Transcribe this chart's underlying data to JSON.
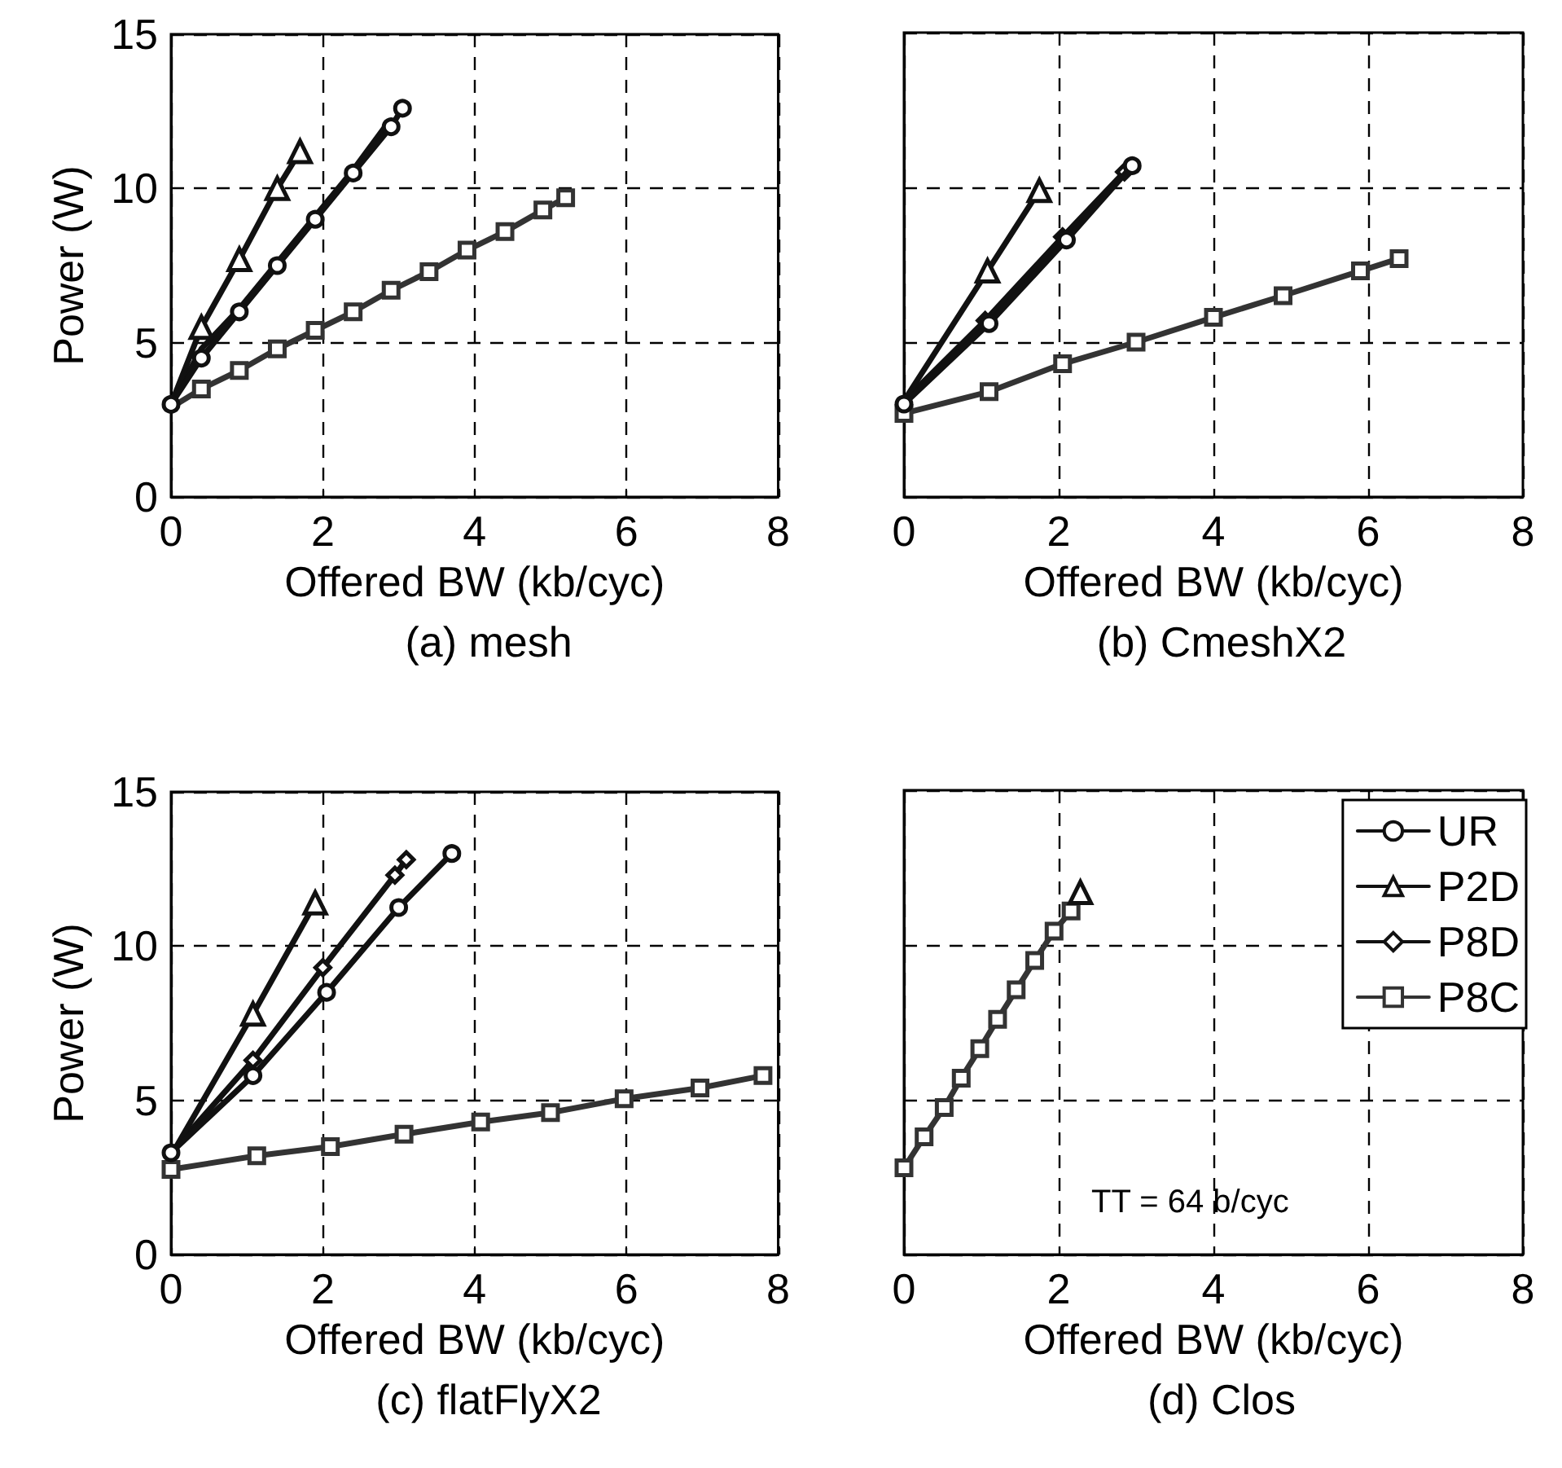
{
  "chart_data": [
    {
      "type": "line",
      "title": "(a) mesh",
      "xlabel": "Offered BW (kb/cyc)",
      "ylabel": "Power (W)",
      "xlim": [
        0,
        8
      ],
      "ylim": [
        0,
        15
      ],
      "xticks": [
        0,
        2,
        4,
        6,
        8
      ],
      "yticks": [
        0,
        5,
        10,
        15
      ],
      "grid": true,
      "legend": false,
      "line_style": "solid",
      "series": [
        {
          "color": "#111111",
          "marker": "circle",
          "x": [
            0,
            0.4,
            0.9,
            1.4,
            1.9,
            2.4,
            2.9,
            3.05
          ],
          "values": [
            3,
            4.5,
            6,
            7.5,
            9,
            10.5,
            12,
            12.6
          ]
        },
        {
          "color": "#111111",
          "marker": "triangle",
          "x": [
            0,
            0.4,
            0.9,
            1.4,
            1.7
          ],
          "values": [
            3,
            5.5,
            7.7,
            10,
            11.2
          ]
        },
        {
          "color": "#111111",
          "marker": "none",
          "x": [
            0,
            0.4,
            0.9,
            1.4,
            1.9,
            2.4,
            2.85
          ],
          "values": [
            3,
            4.8,
            6.1,
            7.6,
            9.1,
            10.6,
            12.1
          ]
        },
        {
          "color": "#333333",
          "marker": "square",
          "x": [
            0,
            0.4,
            0.9,
            1.4,
            1.9,
            2.4,
            2.9,
            3.4,
            3.9,
            4.4,
            4.9,
            5.2
          ],
          "values": [
            2.9,
            3.5,
            4.1,
            4.8,
            5.4,
            6,
            6.7,
            7.3,
            8,
            8.6,
            9.3,
            9.7
          ]
        }
      ]
    },
    {
      "type": "line",
      "title": "(b) CmeshX2",
      "xlabel": "Offered BW (kb/cyc)",
      "xlim": [
        0,
        8
      ],
      "ylim": [
        0,
        15
      ],
      "xticks": [
        0,
        2,
        4,
        6,
        8
      ],
      "yticks": [
        0,
        5,
        10,
        15
      ],
      "tick_labels": "x",
      "grid": true,
      "legend": false,
      "line_style": "solid",
      "series": [
        {
          "color": "#111111",
          "marker": "circle",
          "x": [
            0,
            1.1,
            2.1,
            2.95
          ],
          "values": [
            3,
            5.6,
            8.3,
            10.7
          ]
        },
        {
          "color": "#111111",
          "marker": "triangle",
          "x": [
            0,
            1.08,
            1.75
          ],
          "values": [
            3.1,
            7.3,
            9.9
          ]
        },
        {
          "color": "#111111",
          "marker": "diamond",
          "x": [
            0,
            1.05,
            2.05,
            2.85
          ],
          "values": [
            3.1,
            5.7,
            8.4,
            10.5
          ]
        },
        {
          "color": "#333333",
          "marker": "square",
          "x": [
            0,
            1.1,
            2.05,
            3,
            4,
            4.9,
            5.9,
            6.4
          ],
          "values": [
            2.7,
            3.4,
            4.3,
            5,
            5.8,
            6.5,
            7.3,
            7.7
          ]
        }
      ]
    },
    {
      "type": "line",
      "title": "(c) flatFlyX2",
      "xlabel": "Offered BW (kb/cyc)",
      "ylabel": "Power (W)",
      "xlim": [
        0,
        8
      ],
      "ylim": [
        0,
        15
      ],
      "xticks": [
        0,
        2,
        4,
        6,
        8
      ],
      "yticks": [
        0,
        5,
        10,
        15
      ],
      "grid": true,
      "legend": false,
      "line_style": "solid",
      "series": [
        {
          "color": "#111111",
          "marker": "circle",
          "x": [
            0,
            1.08,
            2.05,
            3,
            3.7
          ],
          "values": [
            3.3,
            5.8,
            8.5,
            11.25,
            13
          ]
        },
        {
          "color": "#111111",
          "marker": "triangle",
          "x": [
            0,
            1.08,
            1.9
          ],
          "values": [
            3.2,
            7.8,
            11.4
          ]
        },
        {
          "color": "#111111",
          "marker": "diamond",
          "x": [
            0,
            1.08,
            2,
            2.95,
            3.1
          ],
          "values": [
            3.3,
            6.3,
            9.3,
            12.3,
            12.8
          ]
        },
        {
          "color": "#333333",
          "marker": "square",
          "x": [
            0,
            1.13,
            2.1,
            3.07,
            4.08,
            5,
            5.97,
            6.97,
            7.8
          ],
          "values": [
            2.76,
            3.2,
            3.5,
            3.9,
            4.3,
            4.6,
            5.05,
            5.4,
            5.8
          ]
        }
      ]
    },
    {
      "type": "line",
      "title": "(d) Clos",
      "xlabel": "Offered BW (kb/cyc)",
      "xlim": [
        0,
        8
      ],
      "ylim": [
        0,
        15
      ],
      "xticks": [
        0,
        2,
        4,
        6,
        8
      ],
      "yticks": [
        0,
        5,
        10,
        15
      ],
      "tick_labels": "x",
      "grid": true,
      "legend": "top right",
      "line_style": "solid",
      "annotations": [
        "TT = 64 b/cyc"
      ],
      "series": [
        {
          "name": "UR",
          "color": "#111111",
          "marker": "circle"
        },
        {
          "name": "P2D",
          "color": "#111111",
          "marker": "triangle",
          "x": [
            2.28
          ],
          "values": [
            11.7
          ]
        },
        {
          "name": "P8D",
          "color": "#111111",
          "marker": "diamond"
        },
        {
          "name": "P8C",
          "color": "#333333",
          "marker": "square",
          "x": [
            0,
            0.26,
            0.52,
            0.74,
            0.98,
            1.21,
            1.45,
            1.69,
            1.94,
            2.16
          ],
          "values": [
            2.8,
            3.8,
            4.75,
            5.7,
            6.65,
            7.6,
            8.55,
            9.5,
            10.45,
            11.1
          ]
        }
      ]
    }
  ]
}
